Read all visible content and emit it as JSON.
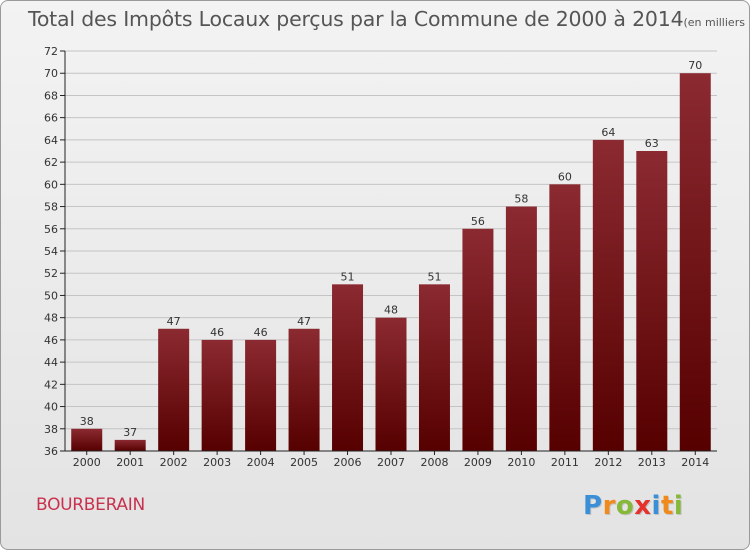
{
  "header": {
    "title": "Total des Impôts Locaux perçus par la Commune de 2000 à 2014",
    "unit": "(en milliers d'€)"
  },
  "footer": {
    "commune": "BOURBERAIN",
    "brand": "Proxiti",
    "brand_letters": [
      {
        "ch": "P",
        "color": "#3a8fd6"
      },
      {
        "ch": "r",
        "color": "#f08a1c"
      },
      {
        "ch": "o",
        "color": "#86b83a"
      },
      {
        "ch": "x",
        "color": "#e5322d"
      },
      {
        "ch": "i",
        "color": "#3a8fd6"
      },
      {
        "ch": "t",
        "color": "#f08a1c"
      },
      {
        "ch": "i",
        "color": "#86b83a"
      }
    ]
  },
  "colors": {
    "bar_top": "#8b2a31",
    "bar_bottom": "#560000",
    "grid": "#c4c4c4",
    "axis": "#222222",
    "text": "#333333"
  },
  "chart_data": {
    "type": "bar",
    "title": "Total des Impôts Locaux perçus par la Commune de 2000 à 2014",
    "xlabel": "",
    "ylabel": "",
    "categories": [
      "2000",
      "2001",
      "2002",
      "2003",
      "2004",
      "2005",
      "2006",
      "2007",
      "2008",
      "2009",
      "2010",
      "2011",
      "2012",
      "2013",
      "2014"
    ],
    "values": [
      38,
      37,
      47,
      46,
      46,
      47,
      51,
      48,
      51,
      56,
      58,
      60,
      64,
      63,
      70
    ],
    "ylim": [
      36,
      72
    ],
    "ytick_step": 2,
    "grid": true,
    "data_labels": true
  }
}
